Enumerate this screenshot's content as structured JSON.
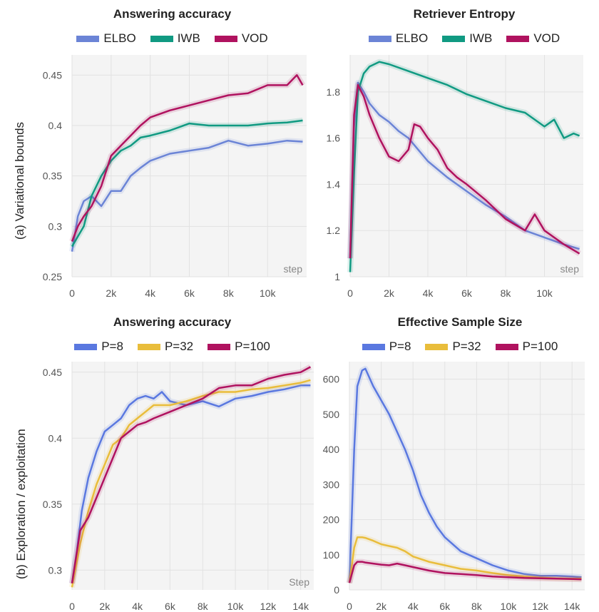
{
  "row_labels": {
    "a": "(a) Variational bounds",
    "b": "(b) Exploration / exploitation"
  },
  "chart_data": [
    {
      "id": "a1",
      "type": "line",
      "title": "Answering accuracy",
      "xlabel": "step",
      "xlim": [
        0,
        12000
      ],
      "ylim": [
        0.25,
        0.47
      ],
      "xticks": [
        0,
        2000,
        4000,
        6000,
        8000,
        10000
      ],
      "xtick_labels": [
        "0",
        "2k",
        "4k",
        "6k",
        "8k",
        "10k"
      ],
      "yticks": [
        0.25,
        0.3,
        0.35,
        0.4,
        0.45
      ],
      "ytick_labels": [
        "0.25",
        "0.3",
        "0.35",
        "0.4",
        "0.45"
      ],
      "series": [
        {
          "name": "ELBO",
          "color": "#6b84d6",
          "x": [
            0,
            300,
            600,
            1000,
            1500,
            2000,
            2500,
            3000,
            3500,
            4000,
            5000,
            6000,
            7000,
            8000,
            9000,
            10000,
            11000,
            11800
          ],
          "y": [
            0.275,
            0.31,
            0.325,
            0.33,
            0.32,
            0.335,
            0.335,
            0.35,
            0.358,
            0.365,
            0.372,
            0.375,
            0.378,
            0.385,
            0.38,
            0.382,
            0.385,
            0.384
          ]
        },
        {
          "name": "IWB",
          "color": "#109a82",
          "x": [
            0,
            300,
            600,
            1000,
            1500,
            2000,
            2500,
            3000,
            3500,
            4000,
            5000,
            6000,
            7000,
            8000,
            9000,
            10000,
            11000,
            11800
          ],
          "y": [
            0.28,
            0.29,
            0.3,
            0.33,
            0.35,
            0.365,
            0.375,
            0.38,
            0.388,
            0.39,
            0.395,
            0.402,
            0.4,
            0.4,
            0.4,
            0.402,
            0.403,
            0.405
          ]
        },
        {
          "name": "VOD",
          "color": "#b0125f",
          "x": [
            0,
            300,
            600,
            1000,
            1500,
            2000,
            2500,
            3000,
            3500,
            4000,
            5000,
            6000,
            7000,
            8000,
            9000,
            10000,
            11000,
            11500,
            11800
          ],
          "y": [
            0.285,
            0.3,
            0.31,
            0.32,
            0.34,
            0.37,
            0.38,
            0.39,
            0.4,
            0.408,
            0.415,
            0.42,
            0.425,
            0.43,
            0.432,
            0.44,
            0.44,
            0.45,
            0.44
          ]
        }
      ]
    },
    {
      "id": "a2",
      "type": "line",
      "title": "Retriever Entropy",
      "xlabel": "step",
      "xlim": [
        0,
        12000
      ],
      "ylim": [
        1.0,
        1.96
      ],
      "xticks": [
        0,
        2000,
        4000,
        6000,
        8000,
        10000
      ],
      "xtick_labels": [
        "0",
        "2k",
        "4k",
        "6k",
        "8k",
        "10k"
      ],
      "yticks": [
        1.0,
        1.2,
        1.4,
        1.6,
        1.8
      ],
      "ytick_labels": [
        "1",
        "1.2",
        "1.4",
        "1.6",
        "1.8"
      ],
      "series": [
        {
          "name": "ELBO",
          "color": "#6b84d6",
          "x": [
            0,
            200,
            400,
            700,
            1000,
            1500,
            2000,
            2500,
            3000,
            3500,
            4000,
            5000,
            6000,
            7000,
            8000,
            9000,
            10000,
            11000,
            11800
          ],
          "y": [
            1.08,
            1.65,
            1.84,
            1.8,
            1.75,
            1.7,
            1.67,
            1.63,
            1.6,
            1.55,
            1.5,
            1.43,
            1.37,
            1.31,
            1.26,
            1.2,
            1.17,
            1.14,
            1.12
          ]
        },
        {
          "name": "IWB",
          "color": "#109a82",
          "x": [
            0,
            200,
            400,
            700,
            1000,
            1500,
            2000,
            3000,
            4000,
            5000,
            6000,
            7000,
            8000,
            9000,
            10000,
            10500,
            11000,
            11500,
            11800
          ],
          "y": [
            1.02,
            1.45,
            1.8,
            1.88,
            1.91,
            1.93,
            1.92,
            1.89,
            1.86,
            1.83,
            1.79,
            1.76,
            1.73,
            1.71,
            1.65,
            1.68,
            1.6,
            1.62,
            1.61
          ]
        },
        {
          "name": "VOD",
          "color": "#b0125f",
          "x": [
            0,
            200,
            400,
            700,
            1000,
            1500,
            2000,
            2500,
            3000,
            3300,
            3600,
            4000,
            4500,
            5000,
            5500,
            6000,
            7000,
            8000,
            9000,
            9500,
            10000,
            11000,
            11800
          ],
          "y": [
            1.08,
            1.7,
            1.83,
            1.78,
            1.7,
            1.6,
            1.52,
            1.5,
            1.55,
            1.66,
            1.65,
            1.6,
            1.55,
            1.47,
            1.43,
            1.4,
            1.33,
            1.25,
            1.2,
            1.27,
            1.2,
            1.14,
            1.1
          ]
        }
      ]
    },
    {
      "id": "b1",
      "type": "line",
      "title": "Answering accuracy",
      "xlabel": "Step",
      "xlim": [
        0,
        14800
      ],
      "ylim": [
        0.285,
        0.458
      ],
      "xticks": [
        0,
        2000,
        4000,
        6000,
        8000,
        10000,
        12000,
        14000
      ],
      "xtick_labels": [
        "0",
        "2k",
        "4k",
        "6k",
        "8k",
        "10k",
        "12k",
        "14k"
      ],
      "yticks": [
        0.3,
        0.35,
        0.4,
        0.45
      ],
      "ytick_labels": [
        "0.3",
        "0.35",
        "0.4",
        "0.45"
      ],
      "series": [
        {
          "name": "P=8",
          "color": "#5a78e0",
          "x": [
            0,
            300,
            600,
            1000,
            1500,
            2000,
            2500,
            3000,
            3500,
            4000,
            4500,
            5000,
            5500,
            6000,
            7000,
            8000,
            9000,
            10000,
            11000,
            12000,
            13000,
            14000,
            14600
          ],
          "y": [
            0.29,
            0.315,
            0.345,
            0.37,
            0.39,
            0.405,
            0.41,
            0.415,
            0.425,
            0.43,
            0.432,
            0.43,
            0.435,
            0.428,
            0.425,
            0.428,
            0.424,
            0.43,
            0.432,
            0.435,
            0.437,
            0.44,
            0.44
          ]
        },
        {
          "name": "P=32",
          "color": "#e9bd3b",
          "x": [
            0,
            500,
            1000,
            1500,
            2000,
            2500,
            3000,
            3500,
            4000,
            4500,
            5000,
            6000,
            7000,
            8000,
            9000,
            10000,
            11000,
            12000,
            13000,
            14000,
            14600
          ],
          "y": [
            0.287,
            0.32,
            0.345,
            0.365,
            0.38,
            0.395,
            0.4,
            0.41,
            0.415,
            0.42,
            0.425,
            0.425,
            0.428,
            0.432,
            0.435,
            0.435,
            0.437,
            0.438,
            0.44,
            0.442,
            0.444
          ]
        },
        {
          "name": "P=100",
          "color": "#b0125f",
          "x": [
            0,
            500,
            1000,
            1500,
            2000,
            2500,
            3000,
            3500,
            4000,
            4500,
            5000,
            6000,
            7000,
            8000,
            9000,
            10000,
            11000,
            12000,
            13000,
            14000,
            14600
          ],
          "y": [
            0.29,
            0.33,
            0.34,
            0.355,
            0.37,
            0.385,
            0.4,
            0.405,
            0.41,
            0.412,
            0.415,
            0.42,
            0.425,
            0.43,
            0.438,
            0.44,
            0.44,
            0.445,
            0.448,
            0.45,
            0.454
          ]
        }
      ]
    },
    {
      "id": "b2",
      "type": "line",
      "title": "Effective Sample Size",
      "xlabel": "",
      "xlim": [
        0,
        14800
      ],
      "ylim": [
        0,
        650
      ],
      "xticks": [
        0,
        2000,
        4000,
        6000,
        8000,
        10000,
        12000,
        14000
      ],
      "xtick_labels": [
        "0",
        "2k",
        "4k",
        "6k",
        "8k",
        "10k",
        "12k",
        "14k"
      ],
      "yticks": [
        0,
        100,
        200,
        300,
        400,
        500,
        600
      ],
      "ytick_labels": [
        "0",
        "100",
        "200",
        "300",
        "400",
        "500",
        "600"
      ],
      "series": [
        {
          "name": "P=8",
          "color": "#5a78e0",
          "x": [
            0,
            300,
            500,
            800,
            1000,
            1500,
            2000,
            2500,
            3000,
            3500,
            4000,
            4500,
            5000,
            5500,
            6000,
            7000,
            8000,
            9000,
            10000,
            11000,
            12000,
            13000,
            14000,
            14600
          ],
          "y": [
            20,
            400,
            580,
            625,
            630,
            580,
            540,
            500,
            450,
            400,
            340,
            270,
            220,
            180,
            150,
            110,
            90,
            70,
            55,
            45,
            40,
            40,
            38,
            36
          ]
        },
        {
          "name": "P=32",
          "color": "#e9bd3b",
          "x": [
            0,
            300,
            500,
            800,
            1000,
            1500,
            2000,
            2500,
            3000,
            3500,
            4000,
            5000,
            6000,
            7000,
            8000,
            9000,
            10000,
            11000,
            12000,
            13000,
            14000,
            14600
          ],
          "y": [
            20,
            120,
            150,
            150,
            148,
            140,
            130,
            125,
            120,
            110,
            95,
            80,
            70,
            60,
            55,
            48,
            42,
            38,
            35,
            33,
            32,
            32
          ]
        },
        {
          "name": "P=100",
          "color": "#b0125f",
          "x": [
            0,
            300,
            500,
            800,
            1000,
            1500,
            2000,
            2500,
            3000,
            3500,
            4000,
            5000,
            6000,
            7000,
            8000,
            9000,
            10000,
            11000,
            12000,
            13000,
            14000,
            14600
          ],
          "y": [
            20,
            70,
            80,
            80,
            78,
            75,
            72,
            70,
            75,
            70,
            65,
            55,
            48,
            45,
            42,
            38,
            36,
            34,
            33,
            32,
            31,
            30
          ]
        }
      ]
    }
  ]
}
